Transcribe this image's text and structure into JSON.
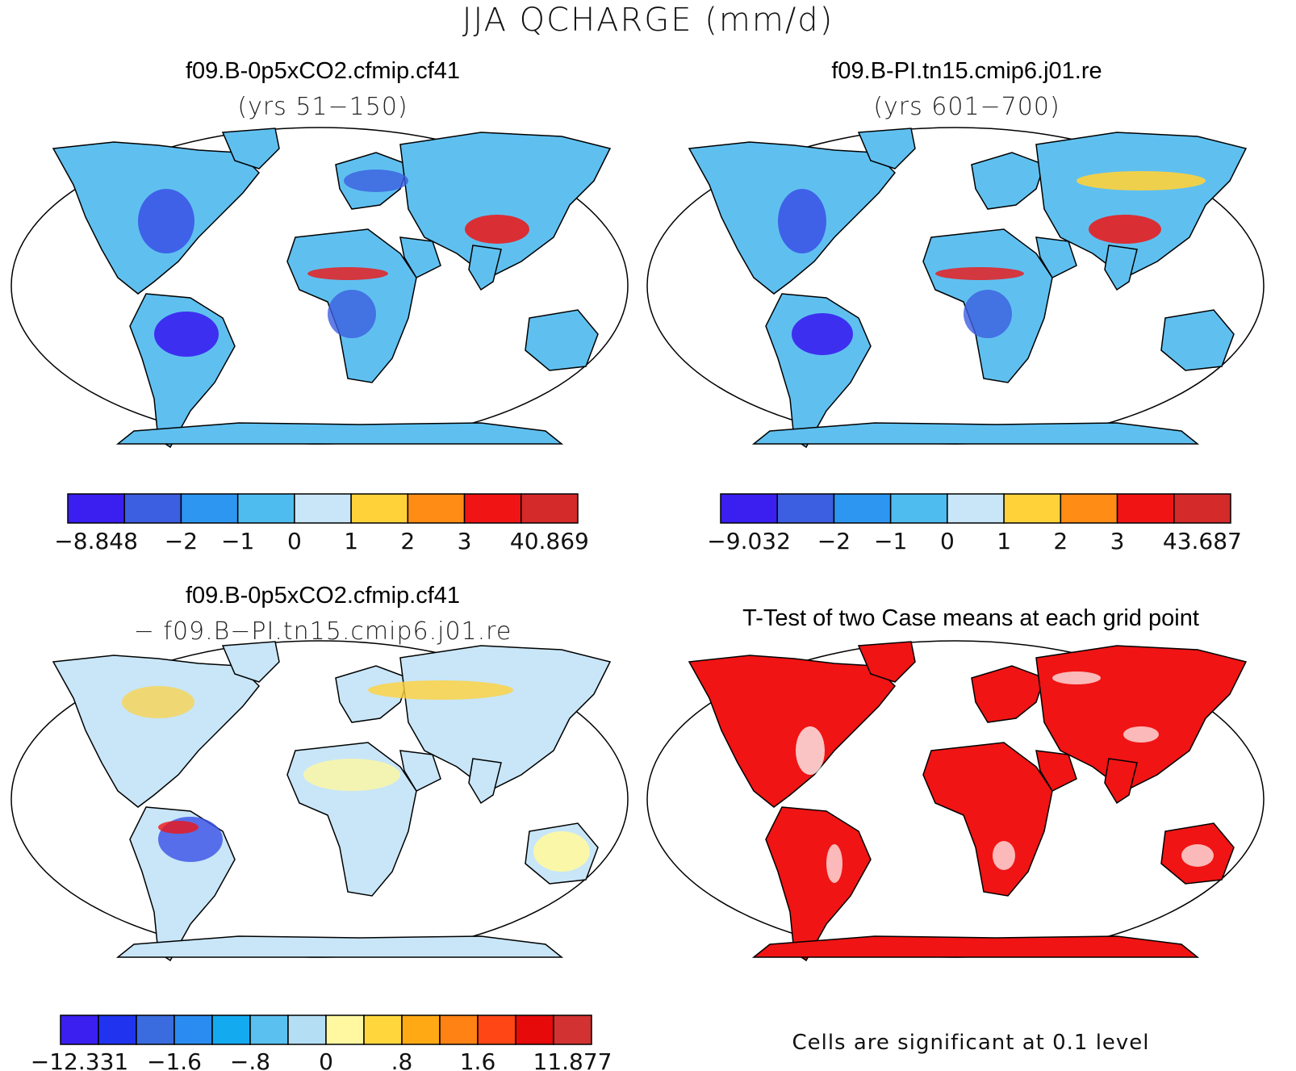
{
  "figure": {
    "title": "JJA QCHARGE (mm/d)"
  },
  "panels": [
    {
      "id": "top-left",
      "title": "f09.B-0p5xCO2.cfmip.cf41",
      "subtitle": "(yrs 51−150)",
      "colorbar": {
        "colors": [
          "#3a1ff0",
          "#3c5ee0",
          "#2d96f0",
          "#4fbcf0",
          "#c8e6f8",
          "#ffd23a",
          "#ff8c14",
          "#f01414",
          "#d42a2a"
        ],
        "tick_labels": [
          "−8.848",
          "−2",
          "−1",
          "0",
          "1",
          "2",
          "3",
          "40.869"
        ]
      }
    },
    {
      "id": "top-right",
      "title": "f09.B-PI.tn15.cmip6.j01.re",
      "subtitle": "(yrs 601−700)",
      "colorbar": {
        "colors": [
          "#3a1ff0",
          "#3c5ee0",
          "#2d96f0",
          "#4fbcf0",
          "#c8e6f8",
          "#ffd23a",
          "#ff8c14",
          "#f01414",
          "#d42a2a"
        ],
        "tick_labels": [
          "−9.032",
          "−2",
          "−1",
          "0",
          "1",
          "2",
          "3",
          "43.687"
        ]
      }
    },
    {
      "id": "bottom-left",
      "title": "f09.B-0p5xCO2.cfmip.cf41",
      "subtitle": "− f09.B−PI.tn15.cmip6.j01.re",
      "colorbar": {
        "colors": [
          "#3a1ff0",
          "#2034f0",
          "#3a6ce0",
          "#2a8cf0",
          "#14aaf0",
          "#5ac0f0",
          "#b4def4",
          "#fff8a0",
          "#ffd73c",
          "#ffaa14",
          "#ff8214",
          "#ff4614",
          "#e60a0a",
          "#d23232"
        ],
        "tick_labels": [
          "−12.331",
          "−1.6",
          "−.8",
          "0",
          ".8",
          "1.6",
          "11.877"
        ]
      }
    },
    {
      "id": "bottom-right",
      "title": "T-Test of two Case means at each grid point",
      "note": "Cells are significant at 0.1 level"
    }
  ],
  "map_colors": {
    "land_mean": "#5fc0f0",
    "land_diff": "#c8e6f8",
    "significance": "#f01414",
    "ocean": "#ffffff",
    "outline": "#000000"
  }
}
